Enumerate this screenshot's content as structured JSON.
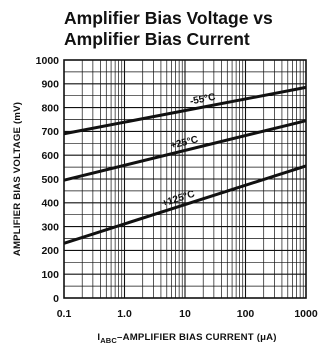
{
  "chart_data": {
    "type": "line",
    "title_lines": [
      "Amplifier Bias Voltage vs",
      "Amplifier Bias Current"
    ],
    "ylabel": "AMPLIFIER BIAS VOLTAGE (mV)",
    "xlabel": {
      "prefix": "I",
      "subscript": "ABC",
      "rest": "–AMPLIFIER BIAS CURRENT (μA)"
    },
    "x_scale": "log",
    "xlim": [
      0.1,
      1000
    ],
    "ylim": [
      0,
      1000
    ],
    "grid": true,
    "x_ticks": [
      {
        "value": 0.1,
        "label": "0.1"
      },
      {
        "value": 1,
        "label": "1.0"
      },
      {
        "value": 10,
        "label": "10"
      },
      {
        "value": 100,
        "label": "100"
      },
      {
        "value": 1000,
        "label": "1000"
      }
    ],
    "y_ticks": [
      {
        "value": 0,
        "label": "0"
      },
      {
        "value": 100,
        "label": "100"
      },
      {
        "value": 200,
        "label": "200"
      },
      {
        "value": 300,
        "label": "300"
      },
      {
        "value": 400,
        "label": "400"
      },
      {
        "value": 500,
        "label": "500"
      },
      {
        "value": 600,
        "label": "600"
      },
      {
        "value": 700,
        "label": "700"
      },
      {
        "value": 800,
        "label": "800"
      },
      {
        "value": 900,
        "label": "900"
      },
      {
        "value": 1000,
        "label": "1000"
      }
    ],
    "series": [
      {
        "name": "-55°C",
        "x": [
          0.1,
          1000
        ],
        "y": [
          690,
          885
        ],
        "label_x": 20
      },
      {
        "name": "+25°C",
        "x": [
          0.1,
          1000
        ],
        "y": [
          495,
          745
        ],
        "label_x": 10
      },
      {
        "name": "+125°C",
        "x": [
          0.1,
          1000
        ],
        "y": [
          230,
          555
        ],
        "label_x": 8
      }
    ]
  }
}
